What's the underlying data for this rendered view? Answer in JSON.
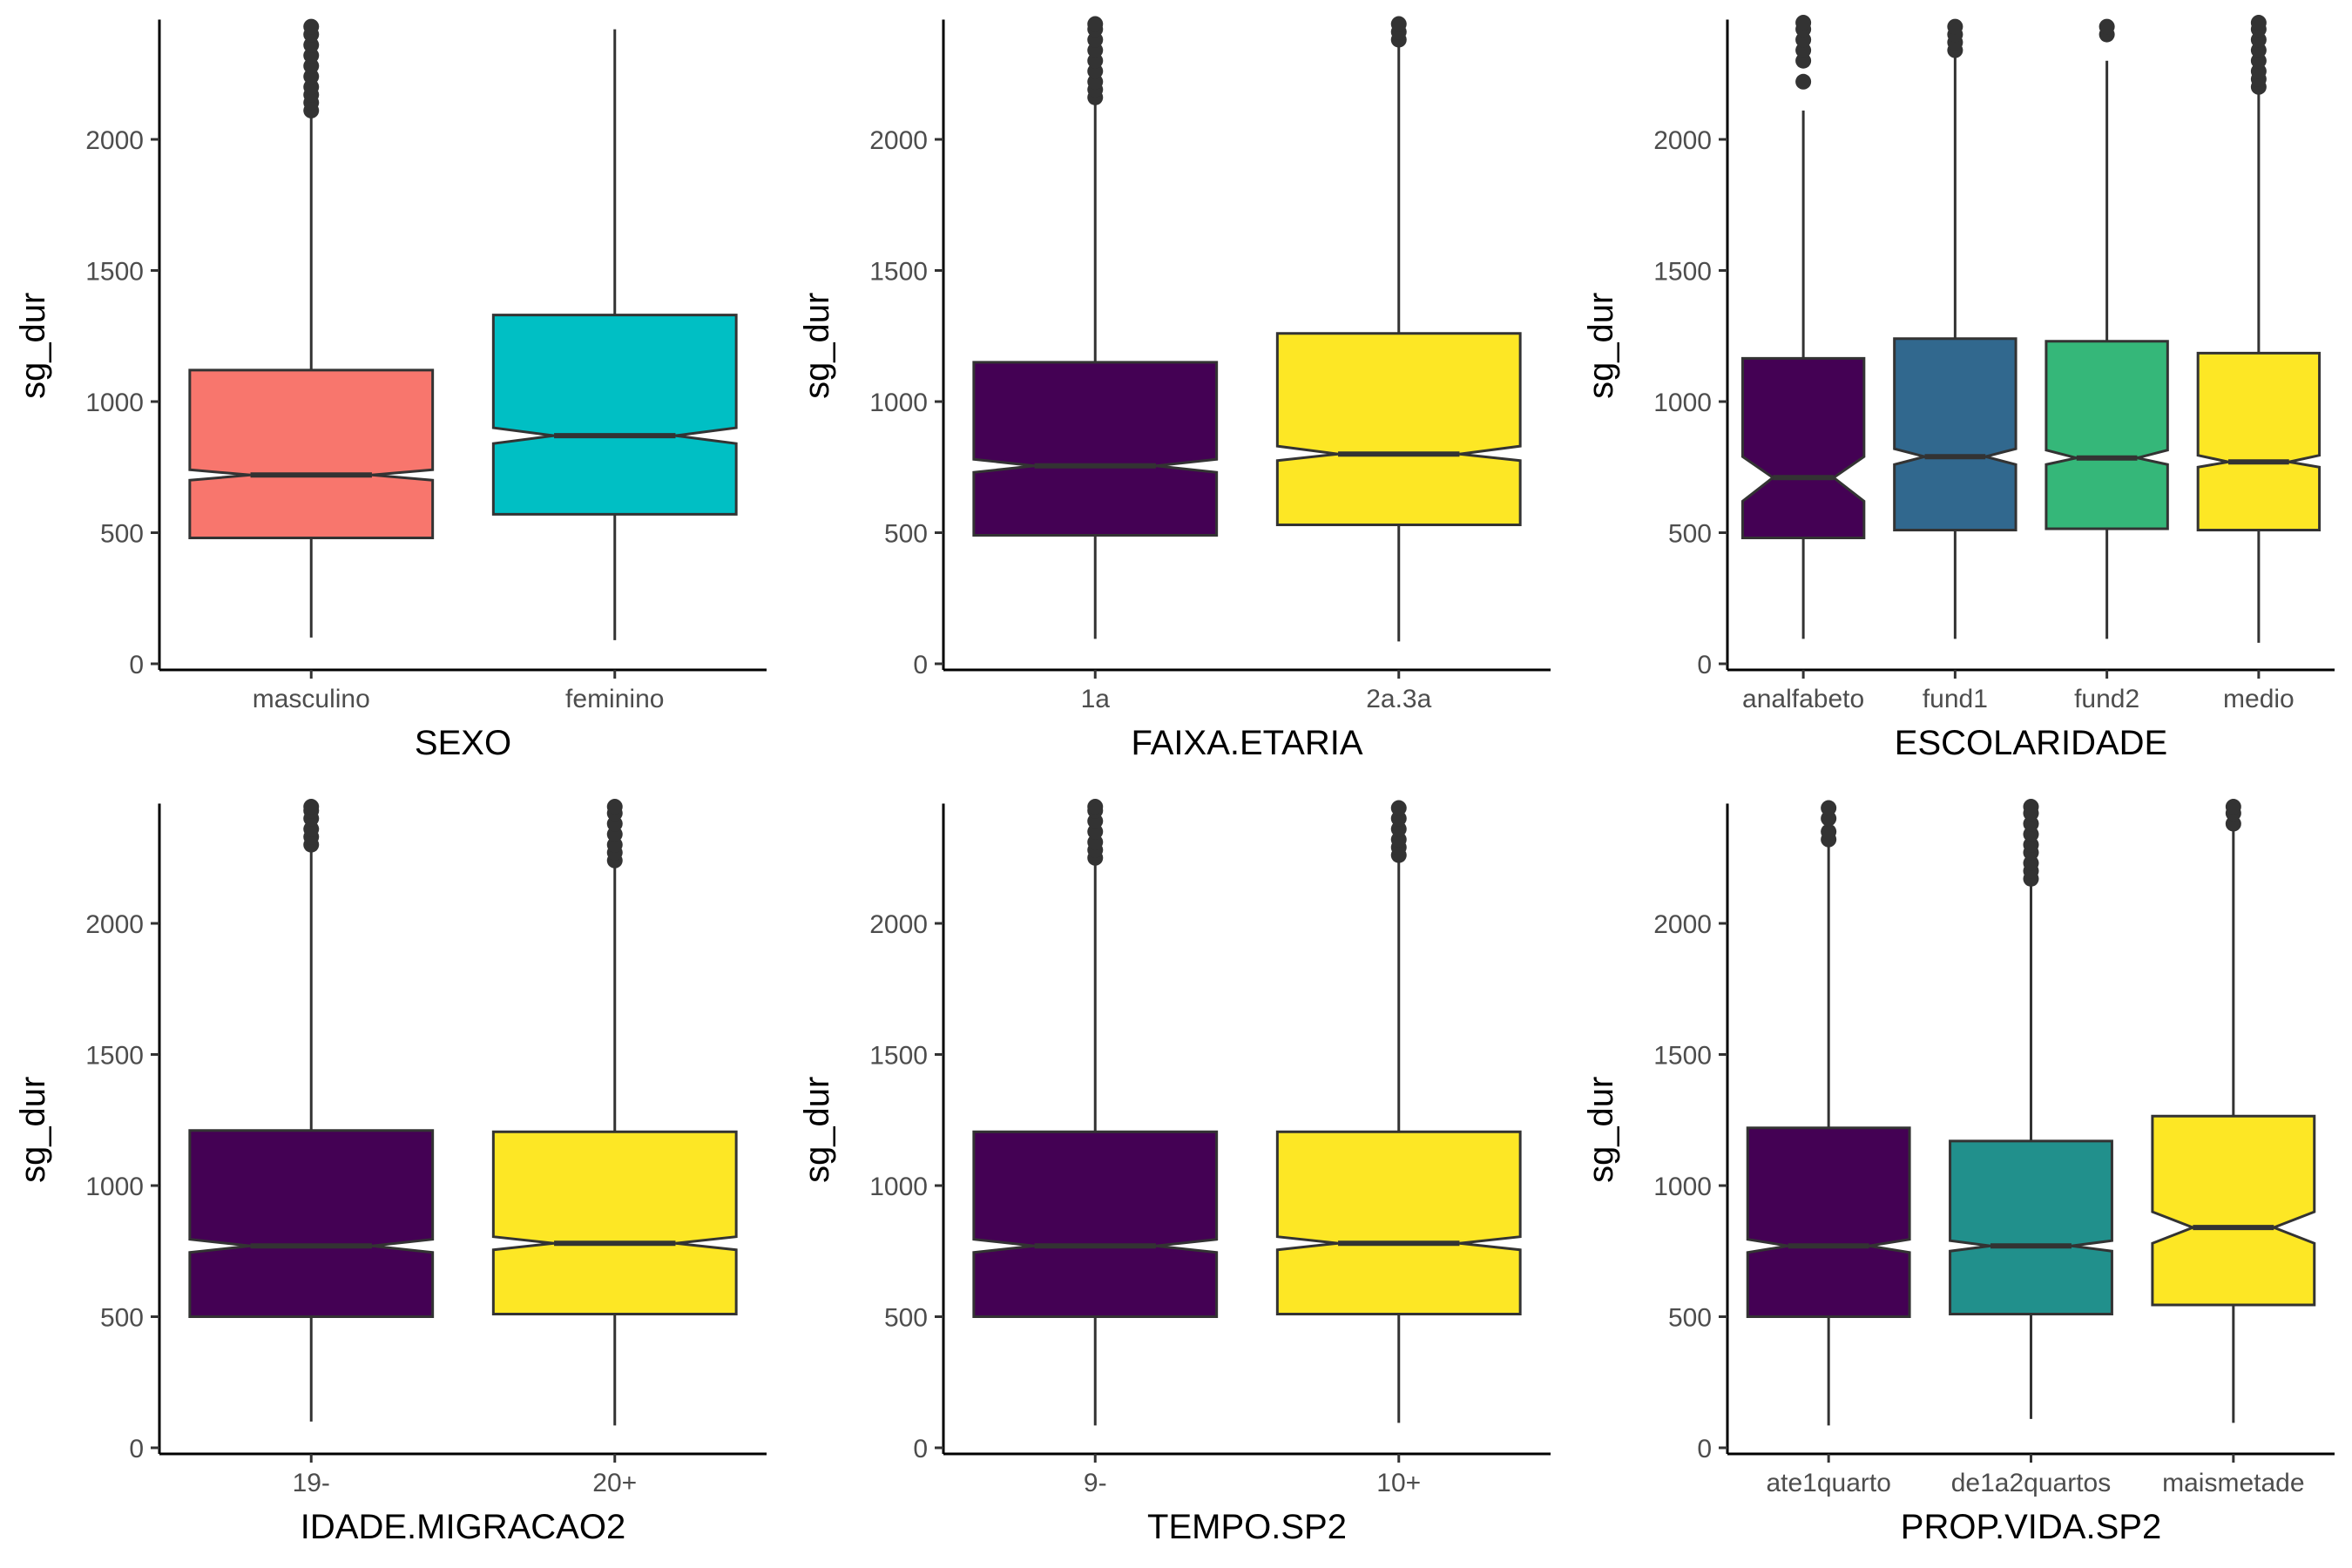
{
  "chart_data": [
    {
      "type": "boxplot",
      "xlabel": "SEXO",
      "ylabel": "sg_dur",
      "ylim": [
        0,
        2450
      ],
      "yticks": [
        0,
        500,
        1000,
        1500,
        2000
      ],
      "categories": [
        "masculino",
        "feminino"
      ],
      "boxes": [
        {
          "min": 100,
          "q1": 480,
          "median": 720,
          "q3": 1120,
          "max": 2100,
          "notch": [
            700,
            740
          ],
          "color": "#F8766D",
          "outliers": [
            2110,
            2140,
            2170,
            2200,
            2240,
            2280,
            2320,
            2360,
            2400,
            2430
          ]
        },
        {
          "min": 90,
          "q1": 570,
          "median": 870,
          "q3": 1330,
          "max": 2420,
          "notch": [
            840,
            900
          ],
          "color": "#00BFC4",
          "outliers": []
        }
      ]
    },
    {
      "type": "boxplot",
      "xlabel": "FAIXA.ETARIA",
      "ylabel": "sg_dur",
      "ylim": [
        0,
        2450
      ],
      "yticks": [
        0,
        500,
        1000,
        1500,
        2000
      ],
      "categories": [
        "1a",
        "2a.3a"
      ],
      "boxes": [
        {
          "min": 95,
          "q1": 490,
          "median": 755,
          "q3": 1150,
          "max": 2150,
          "notch": [
            730,
            780
          ],
          "color": "#440154",
          "outliers": [
            2160,
            2190,
            2220,
            2260,
            2300,
            2340,
            2380,
            2420,
            2440
          ]
        },
        {
          "min": 85,
          "q1": 530,
          "median": 800,
          "q3": 1260,
          "max": 2370,
          "notch": [
            775,
            830
          ],
          "color": "#FDE725",
          "outliers": [
            2380,
            2410,
            2440
          ]
        }
      ]
    },
    {
      "type": "boxplot",
      "xlabel": "ESCOLARIDADE",
      "ylabel": "sg_dur",
      "ylim": [
        0,
        2450
      ],
      "yticks": [
        0,
        500,
        1000,
        1500,
        2000
      ],
      "categories": [
        "analfabeto",
        "fund1",
        "fund2",
        "medio"
      ],
      "boxes": [
        {
          "min": 95,
          "q1": 480,
          "median": 710,
          "q3": 1165,
          "max": 2110,
          "notch": [
            620,
            790
          ],
          "color": "#440154",
          "outliers": [
            2220,
            2300,
            2340,
            2380,
            2420,
            2445
          ]
        },
        {
          "min": 95,
          "q1": 510,
          "median": 790,
          "q3": 1240,
          "max": 2330,
          "notch": [
            760,
            820
          ],
          "color": "#31688E",
          "outliers": [
            2340,
            2370,
            2400,
            2430
          ]
        },
        {
          "min": 95,
          "q1": 515,
          "median": 785,
          "q3": 1230,
          "max": 2300,
          "notch": [
            760,
            815
          ],
          "color": "#35B779",
          "outliers": [
            2400,
            2430
          ]
        },
        {
          "min": 80,
          "q1": 510,
          "median": 770,
          "q3": 1185,
          "max": 2180,
          "notch": [
            750,
            795
          ],
          "color": "#FDE725",
          "outliers": [
            2200,
            2230,
            2260,
            2300,
            2340,
            2380,
            2420,
            2445
          ]
        }
      ]
    },
    {
      "type": "boxplot",
      "xlabel": "IDADE.MIGRACAO2",
      "ylabel": "sg_dur",
      "ylim": [
        0,
        2450
      ],
      "yticks": [
        0,
        500,
        1000,
        1500,
        2000
      ],
      "categories": [
        "19-",
        "20+"
      ],
      "boxes": [
        {
          "min": 100,
          "q1": 500,
          "median": 770,
          "q3": 1210,
          "max": 2290,
          "notch": [
            745,
            795
          ],
          "color": "#440154",
          "outliers": [
            2300,
            2330,
            2360,
            2400,
            2430,
            2445
          ]
        },
        {
          "min": 85,
          "q1": 510,
          "median": 780,
          "q3": 1205,
          "max": 2230,
          "notch": [
            755,
            805
          ],
          "color": "#FDE725",
          "outliers": [
            2240,
            2270,
            2300,
            2340,
            2380,
            2420,
            2445
          ]
        }
      ]
    },
    {
      "type": "boxplot",
      "xlabel": "TEMPO.SP2",
      "ylabel": "sg_dur",
      "ylim": [
        0,
        2450
      ],
      "yticks": [
        0,
        500,
        1000,
        1500,
        2000
      ],
      "categories": [
        "9-",
        "10+"
      ],
      "boxes": [
        {
          "min": 85,
          "q1": 500,
          "median": 770,
          "q3": 1205,
          "max": 2240,
          "notch": [
            745,
            795
          ],
          "color": "#440154",
          "outliers": [
            2250,
            2280,
            2310,
            2350,
            2390,
            2430,
            2445
          ]
        },
        {
          "min": 95,
          "q1": 510,
          "median": 780,
          "q3": 1205,
          "max": 2250,
          "notch": [
            755,
            805
          ],
          "color": "#FDE725",
          "outliers": [
            2260,
            2290,
            2320,
            2360,
            2400,
            2440
          ]
        }
      ]
    },
    {
      "type": "boxplot",
      "xlabel": "PROP.VIDA.SP2",
      "ylabel": "sg_dur",
      "ylim": [
        0,
        2450
      ],
      "yticks": [
        0,
        500,
        1000,
        1500,
        2000
      ],
      "categories": [
        "ate1quarto",
        "de1a2quartos",
        "maismetade"
      ],
      "boxes": [
        {
          "min": 85,
          "q1": 500,
          "median": 770,
          "q3": 1220,
          "max": 2310,
          "notch": [
            745,
            795
          ],
          "color": "#440154",
          "outliers": [
            2320,
            2350,
            2400,
            2440
          ]
        },
        {
          "min": 110,
          "q1": 510,
          "median": 770,
          "q3": 1170,
          "max": 2160,
          "notch": [
            750,
            790
          ],
          "color": "#21908C",
          "outliers": [
            2170,
            2200,
            2230,
            2270,
            2300,
            2340,
            2380,
            2420,
            2445
          ]
        },
        {
          "min": 95,
          "q1": 545,
          "median": 840,
          "q3": 1265,
          "max": 2370,
          "notch": [
            780,
            900
          ],
          "color": "#FDE725",
          "outliers": [
            2380,
            2420,
            2445
          ]
        }
      ]
    }
  ]
}
